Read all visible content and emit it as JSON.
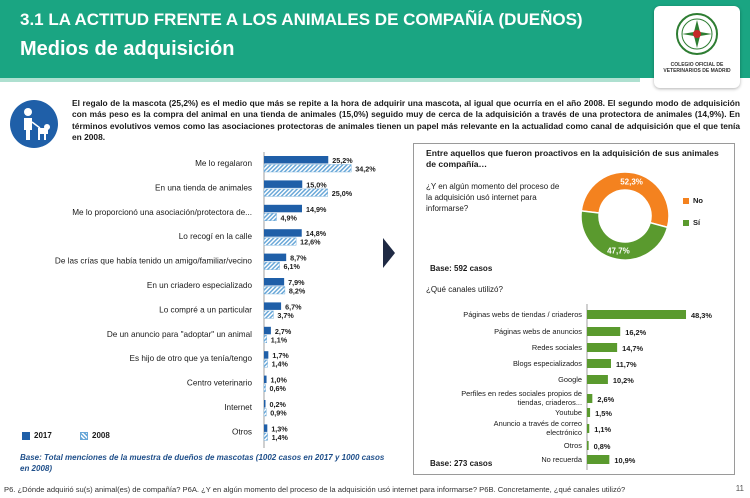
{
  "header": {
    "title": "3.1 LA ACTITUD FRENTE A LOS ANIMALES DE COMPAÑÍA (DUEÑOS)",
    "subtitle": "Medios de adquisición",
    "logo_text": "COLEGIO OFICIAL DE VETERINARIOS DE MADRID"
  },
  "colors": {
    "header": "#1aa582",
    "series_2017": "#1f5fa8",
    "series_2008": "#6aa8d8",
    "pie_no": "#f4821f",
    "pie_si": "#5a9a2e",
    "channel_bars": "#5a9a2e"
  },
  "intro": "El regalo de la mascota (25,2%) es el medio que más se repite a la hora de adquirir una mascota, al igual que ocurría en el año 2008. El segundo modo de adquisición con más peso es la compra del animal en una tienda de animales (15,0%) seguido muy de cerca de la adquisición a través de una protectora de animales (14,9%). En términos evolutivos vemos como las asociaciones protectoras de animales tienen un papel más relevante en la actualidad como canal de adquisición que el que tenía en 2008.",
  "legend": {
    "y2017": "2017",
    "y2008": "2008"
  },
  "base_left": "Base: Total menciones de la muestra de dueños de mascotas (1002 casos en 2017 y 1000 casos en 2008)",
  "right_panel": {
    "title": "Entre aquellos que fueron proactivos en la adquisición de sus animales de compañía…",
    "question1": "¿Y en algún momento del proceso de la adquisición usó internet para informarse?",
    "base1": "Base: 592 casos",
    "question2": "¿Qué canales utilizó?",
    "base2": "Base: 273 casos"
  },
  "footer": "P6. ¿Dónde adquirió su(s) animal(es) de compañía? P6A. ¿Y en algún momento del proceso de la adquisición usó internet para informarse? P6B. Concretamente, ¿qué canales utilizó?",
  "page_number": "11",
  "chart_data": [
    {
      "type": "bar",
      "orientation": "horizontal",
      "categories": [
        "Me lo regalaron",
        "En una tienda de animales",
        "Me lo proporcionó una asociación/protectora de...",
        "Lo recogí en la calle",
        "De las crías que había tenido un amigo/familiar/vecino",
        "En un criadero especializado",
        "Lo compré a un particular",
        "De un anuncio para \"adoptar\" un animal",
        "Es hijo de otro que ya tenía/tengo",
        "Centro veterinario",
        "Internet",
        "Otros"
      ],
      "series": [
        {
          "name": "2017",
          "values": [
            25.2,
            15.0,
            14.9,
            14.8,
            8.7,
            7.9,
            6.7,
            2.7,
            1.7,
            1.0,
            0.2,
            1.3
          ],
          "labels": [
            "25,2%",
            "15,0%",
            "14,9%",
            "14,8%",
            "8,7%",
            "7,9%",
            "6,7%",
            "2,7%",
            "1,7%",
            "1,0%",
            "0,2%",
            "1,3%"
          ]
        },
        {
          "name": "2008",
          "values": [
            34.2,
            25.0,
            4.9,
            12.6,
            6.1,
            8.2,
            3.7,
            1.1,
            1.4,
            0.6,
            0.9,
            1.4
          ],
          "labels": [
            "34,2%",
            "25,0%",
            "4,9%",
            "12,6%",
            "6,1%",
            "8,2%",
            "3,7%",
            "1,1%",
            "1,4%",
            "0,6%",
            "0,9%",
            "1,4%"
          ]
        }
      ]
    },
    {
      "type": "pie",
      "categories": [
        "No",
        "Sí"
      ],
      "values": [
        52.3,
        47.7
      ],
      "labels": [
        "52,3%",
        "47,7%"
      ]
    },
    {
      "type": "bar",
      "orientation": "horizontal",
      "categories": [
        "Páginas webs de tiendas / criaderos",
        "Páginas webs de anuncios",
        "Redes sociales",
        "Blogs especializados",
        "Google",
        "Perfiles en redes sociales propios de tiendas, criaderos...",
        "Youtube",
        "Anuncio a través de correo electrónico",
        "Otros",
        "No recuerda"
      ],
      "values": [
        48.3,
        16.2,
        14.7,
        11.7,
        10.2,
        2.6,
        1.5,
        1.1,
        0.8,
        10.9
      ],
      "labels": [
        "48,3%",
        "16,2%",
        "14,7%",
        "11,7%",
        "10,2%",
        "2,6%",
        "1,5%",
        "1,1%",
        "0,8%",
        "10,9%"
      ]
    }
  ]
}
